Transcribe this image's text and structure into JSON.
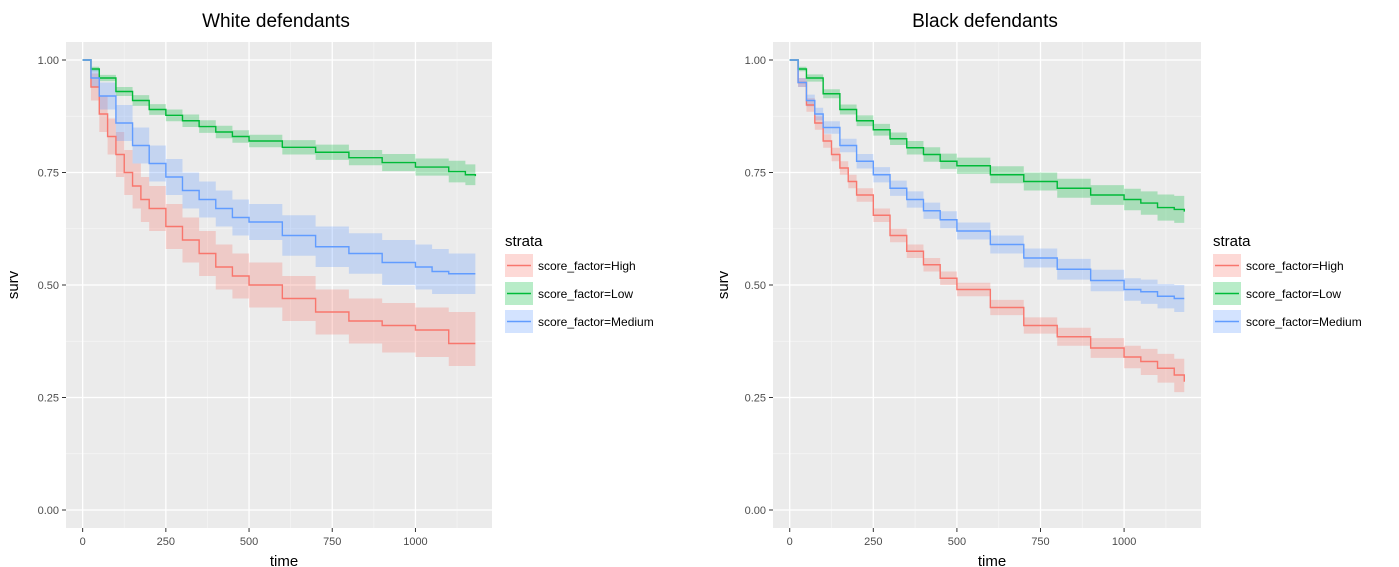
{
  "chart_data": [
    {
      "type": "line",
      "title": "White defendants",
      "xlabel": "time",
      "ylabel": "surv",
      "xlim": [
        -50,
        1230
      ],
      "ylim": [
        -0.04,
        1.04
      ],
      "x_ticks": [
        0,
        250,
        500,
        750,
        1000
      ],
      "x_tick_labels": [
        "0",
        "250",
        "500",
        "750",
        "1000"
      ],
      "y_ticks": [
        0,
        0.25,
        0.5,
        0.75,
        1
      ],
      "y_tick_labels": [
        "0.00",
        "0.25",
        "0.50",
        "0.75",
        "1.00"
      ],
      "grid": true,
      "legend": {
        "title": "strata",
        "position": "right"
      },
      "series": [
        {
          "name": "score_factor=High",
          "color": "#f8766d",
          "x": [
            0,
            25,
            50,
            75,
            100,
            125,
            150,
            175,
            200,
            250,
            300,
            350,
            400,
            450,
            500,
            600,
            700,
            800,
            900,
            1000,
            1100,
            1180
          ],
          "y": [
            1.0,
            0.94,
            0.88,
            0.83,
            0.79,
            0.75,
            0.72,
            0.69,
            0.67,
            0.63,
            0.6,
            0.57,
            0.54,
            0.52,
            0.5,
            0.47,
            0.44,
            0.42,
            0.41,
            0.4,
            0.37,
            0.37
          ],
          "lower": [
            1.0,
            0.91,
            0.84,
            0.79,
            0.74,
            0.7,
            0.67,
            0.64,
            0.62,
            0.58,
            0.55,
            0.52,
            0.49,
            0.47,
            0.45,
            0.42,
            0.39,
            0.37,
            0.35,
            0.34,
            0.32,
            0.32
          ],
          "upper": [
            1.0,
            0.97,
            0.92,
            0.87,
            0.84,
            0.8,
            0.77,
            0.74,
            0.72,
            0.68,
            0.65,
            0.62,
            0.59,
            0.57,
            0.55,
            0.52,
            0.49,
            0.47,
            0.46,
            0.45,
            0.44,
            0.44
          ]
        },
        {
          "name": "score_factor=Low",
          "color": "#00ba38",
          "x": [
            0,
            25,
            50,
            100,
            150,
            200,
            250,
            300,
            350,
            400,
            450,
            500,
            600,
            700,
            800,
            900,
            1000,
            1100,
            1150,
            1180
          ],
          "y": [
            1.0,
            0.98,
            0.96,
            0.93,
            0.91,
            0.89,
            0.877,
            0.865,
            0.852,
            0.84,
            0.83,
            0.82,
            0.806,
            0.795,
            0.783,
            0.772,
            0.762,
            0.752,
            0.745,
            0.742
          ],
          "lower": [
            1.0,
            0.975,
            0.953,
            0.92,
            0.898,
            0.878,
            0.864,
            0.851,
            0.838,
            0.826,
            0.816,
            0.806,
            0.79,
            0.778,
            0.766,
            0.753,
            0.743,
            0.728,
            0.722,
            0.72
          ],
          "upper": [
            1.0,
            0.985,
            0.967,
            0.94,
            0.922,
            0.902,
            0.89,
            0.879,
            0.866,
            0.854,
            0.844,
            0.834,
            0.822,
            0.812,
            0.8,
            0.791,
            0.781,
            0.776,
            0.768,
            0.765
          ]
        },
        {
          "name": "score_factor=Medium",
          "color": "#619cff",
          "x": [
            0,
            25,
            50,
            100,
            150,
            200,
            250,
            300,
            350,
            400,
            450,
            500,
            600,
            700,
            800,
            900,
            1000,
            1050,
            1100,
            1180
          ],
          "y": [
            1.0,
            0.96,
            0.92,
            0.86,
            0.81,
            0.77,
            0.74,
            0.71,
            0.69,
            0.67,
            0.65,
            0.64,
            0.61,
            0.585,
            0.57,
            0.55,
            0.54,
            0.53,
            0.525,
            0.525
          ],
          "lower": [
            1.0,
            0.94,
            0.89,
            0.82,
            0.77,
            0.73,
            0.7,
            0.67,
            0.65,
            0.63,
            0.61,
            0.6,
            0.565,
            0.54,
            0.525,
            0.5,
            0.49,
            0.48,
            0.48,
            0.48
          ],
          "upper": [
            1.0,
            0.98,
            0.95,
            0.9,
            0.85,
            0.81,
            0.78,
            0.75,
            0.73,
            0.71,
            0.69,
            0.68,
            0.655,
            0.63,
            0.615,
            0.6,
            0.59,
            0.58,
            0.57,
            0.57
          ]
        }
      ]
    },
    {
      "type": "line",
      "title": "Black defendants",
      "xlabel": "time",
      "ylabel": "surv",
      "xlim": [
        -50,
        1230
      ],
      "ylim": [
        -0.04,
        1.04
      ],
      "x_ticks": [
        0,
        250,
        500,
        750,
        1000
      ],
      "x_tick_labels": [
        "0",
        "250",
        "500",
        "750",
        "1000"
      ],
      "y_ticks": [
        0,
        0.25,
        0.5,
        0.75,
        1
      ],
      "y_tick_labels": [
        "0.00",
        "0.25",
        "0.50",
        "0.75",
        "1.00"
      ],
      "grid": true,
      "legend": {
        "title": "strata",
        "position": "right"
      },
      "series": [
        {
          "name": "score_factor=High",
          "color": "#f8766d",
          "x": [
            0,
            25,
            50,
            75,
            100,
            125,
            150,
            175,
            200,
            250,
            300,
            350,
            400,
            450,
            500,
            600,
            700,
            800,
            900,
            1000,
            1050,
            1100,
            1150,
            1180
          ],
          "y": [
            1.0,
            0.95,
            0.9,
            0.86,
            0.82,
            0.79,
            0.76,
            0.73,
            0.7,
            0.655,
            0.61,
            0.575,
            0.545,
            0.515,
            0.49,
            0.45,
            0.41,
            0.385,
            0.36,
            0.34,
            0.33,
            0.315,
            0.3,
            0.285
          ],
          "lower": [
            1.0,
            0.94,
            0.885,
            0.845,
            0.805,
            0.775,
            0.745,
            0.715,
            0.685,
            0.64,
            0.595,
            0.56,
            0.53,
            0.5,
            0.475,
            0.433,
            0.392,
            0.365,
            0.338,
            0.315,
            0.3,
            0.283,
            0.262,
            0.245
          ],
          "upper": [
            1.0,
            0.96,
            0.915,
            0.875,
            0.835,
            0.805,
            0.775,
            0.745,
            0.715,
            0.67,
            0.625,
            0.59,
            0.56,
            0.53,
            0.505,
            0.467,
            0.428,
            0.405,
            0.382,
            0.365,
            0.358,
            0.347,
            0.336,
            0.325
          ]
        },
        {
          "name": "score_factor=Low",
          "color": "#00ba38",
          "x": [
            0,
            25,
            50,
            100,
            150,
            200,
            250,
            300,
            350,
            400,
            450,
            500,
            600,
            700,
            800,
            900,
            1000,
            1050,
            1100,
            1150,
            1180
          ],
          "y": [
            1.0,
            0.98,
            0.96,
            0.925,
            0.89,
            0.865,
            0.845,
            0.825,
            0.805,
            0.79,
            0.775,
            0.765,
            0.745,
            0.73,
            0.715,
            0.7,
            0.69,
            0.682,
            0.672,
            0.668,
            0.663
          ],
          "lower": [
            1.0,
            0.975,
            0.952,
            0.915,
            0.879,
            0.853,
            0.832,
            0.811,
            0.79,
            0.774,
            0.758,
            0.747,
            0.726,
            0.71,
            0.694,
            0.678,
            0.666,
            0.656,
            0.643,
            0.638,
            0.632
          ],
          "upper": [
            1.0,
            0.985,
            0.968,
            0.935,
            0.901,
            0.877,
            0.858,
            0.839,
            0.82,
            0.806,
            0.792,
            0.783,
            0.764,
            0.75,
            0.736,
            0.722,
            0.714,
            0.708,
            0.701,
            0.698,
            0.694
          ]
        },
        {
          "name": "score_factor=Medium",
          "color": "#619cff",
          "x": [
            0,
            25,
            50,
            75,
            100,
            150,
            200,
            250,
            300,
            350,
            400,
            450,
            500,
            600,
            700,
            800,
            900,
            1000,
            1050,
            1100,
            1150,
            1180
          ],
          "y": [
            1.0,
            0.95,
            0.91,
            0.88,
            0.85,
            0.81,
            0.775,
            0.745,
            0.715,
            0.69,
            0.665,
            0.645,
            0.62,
            0.59,
            0.56,
            0.535,
            0.51,
            0.49,
            0.485,
            0.475,
            0.47,
            0.47
          ],
          "lower": [
            1.0,
            0.94,
            0.897,
            0.866,
            0.836,
            0.795,
            0.759,
            0.728,
            0.698,
            0.672,
            0.647,
            0.626,
            0.601,
            0.57,
            0.539,
            0.512,
            0.486,
            0.465,
            0.458,
            0.448,
            0.44,
            0.44
          ],
          "upper": [
            1.0,
            0.96,
            0.923,
            0.894,
            0.864,
            0.825,
            0.791,
            0.762,
            0.732,
            0.708,
            0.683,
            0.664,
            0.639,
            0.61,
            0.581,
            0.558,
            0.534,
            0.515,
            0.512,
            0.502,
            0.5,
            0.5
          ]
        }
      ]
    }
  ]
}
